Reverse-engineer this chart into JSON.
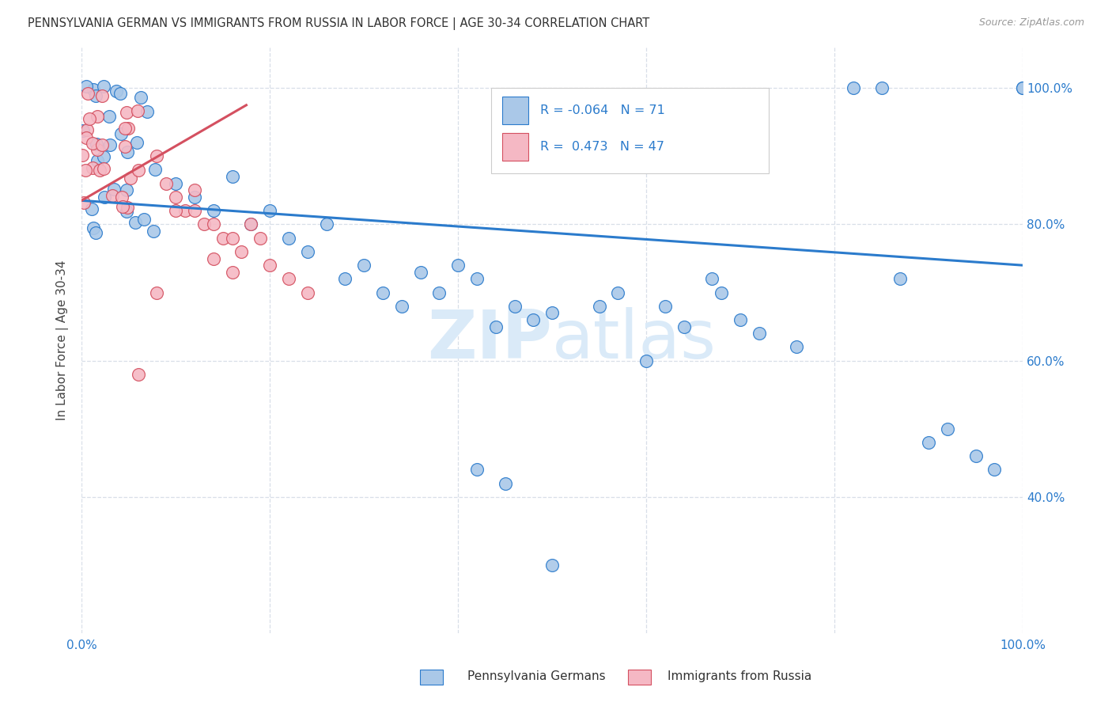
{
  "title": "PENNSYLVANIA GERMAN VS IMMIGRANTS FROM RUSSIA IN LABOR FORCE | AGE 30-34 CORRELATION CHART",
  "source": "Source: ZipAtlas.com",
  "ylabel": "In Labor Force | Age 30-34",
  "xlim": [
    0.0,
    1.0
  ],
  "ylim": [
    0.2,
    1.06
  ],
  "xticks": [
    0.0,
    0.2,
    0.4,
    0.6,
    0.8,
    1.0
  ],
  "xticklabels_ends": [
    "0.0%",
    "100.0%"
  ],
  "ytick_positions": [
    0.4,
    0.6,
    0.8,
    1.0
  ],
  "ytick_labels": [
    "40.0%",
    "60.0%",
    "80.0%",
    "100.0%"
  ],
  "scatter_blue_color": "#aac8e8",
  "scatter_pink_color": "#f5b8c4",
  "line_blue_color": "#2b7bcc",
  "line_pink_color": "#d45060",
  "grid_color": "#d8dfe8",
  "watermark_color": "#daeaf8",
  "bg_color": "#ffffff",
  "blue_r": -0.064,
  "blue_n": 71,
  "pink_r": 0.473,
  "pink_n": 47,
  "blue_line_y0": 0.835,
  "blue_line_y1": 0.74,
  "pink_line_x0": 0.0,
  "pink_line_x1": 0.175,
  "pink_line_y0": 0.835,
  "pink_line_y1": 0.975,
  "legend_label1": "R = -0.064   N = 71",
  "legend_label2": "R =  0.473   N = 47",
  "bottom_label1": "Pennsylvania Germans",
  "bottom_label2": "Immigrants from Russia"
}
